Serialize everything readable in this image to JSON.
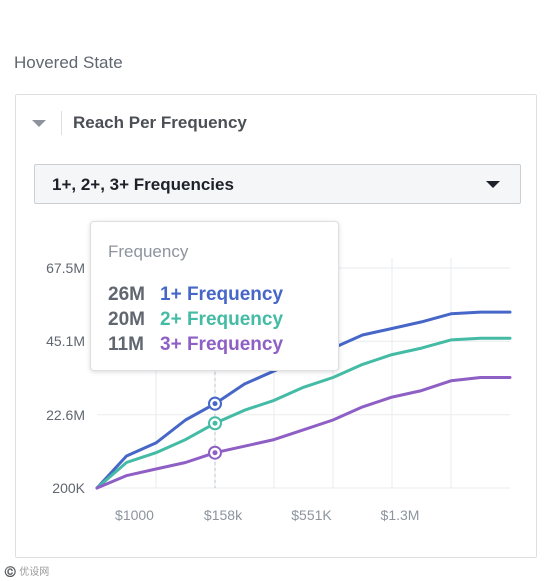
{
  "state_label": "Hovered State",
  "card": {
    "title": "Reach Per Frequency",
    "icons": {
      "collapse": "caret-down-icon",
      "select": "caret-down-icon"
    },
    "select_value": "1+, 2+, 3+ Frequencies"
  },
  "tooltip": {
    "title": "Frequency",
    "rows": [
      {
        "value": "26M",
        "label": "1+ Frequency",
        "color": "#4667c8"
      },
      {
        "value": "20M",
        "label": "2+ Frequency",
        "color": "#44bba4"
      },
      {
        "value": "11M",
        "label": "3+ Frequency",
        "color": "#8e5fc4"
      }
    ]
  },
  "chart_data": {
    "type": "line",
    "y_tick_labels": [
      "67.5M",
      "45.1M",
      "22.6M",
      "200K"
    ],
    "x_tick_labels": [
      "$1000",
      "$158k",
      "$551K",
      "$1.3M"
    ],
    "ylim": [
      0.2,
      67.5
    ],
    "grid": true,
    "hover_index": 4,
    "x": [
      0,
      1,
      2,
      3,
      4,
      5,
      6,
      7,
      8,
      9,
      10,
      11,
      12,
      13,
      14
    ],
    "series": [
      {
        "name": "1+ Frequency",
        "color": "#4667c8",
        "values": [
          0.2,
          10,
          14,
          21,
          26,
          32,
          36,
          40,
          43,
          47,
          49,
          51,
          53.5,
          54,
          54
        ]
      },
      {
        "name": "2+ Frequency",
        "color": "#44bba4",
        "values": [
          0.2,
          8,
          11,
          15,
          20,
          24,
          27,
          31,
          34,
          38,
          41,
          43,
          45.5,
          46,
          46
        ]
      },
      {
        "name": "3+ Frequency",
        "color": "#8e5fc4",
        "values": [
          0.2,
          4,
          6,
          8,
          11,
          13,
          15,
          18,
          21,
          25,
          28,
          30,
          33,
          34,
          34
        ]
      }
    ]
  },
  "watermark": "©️ 优设网"
}
